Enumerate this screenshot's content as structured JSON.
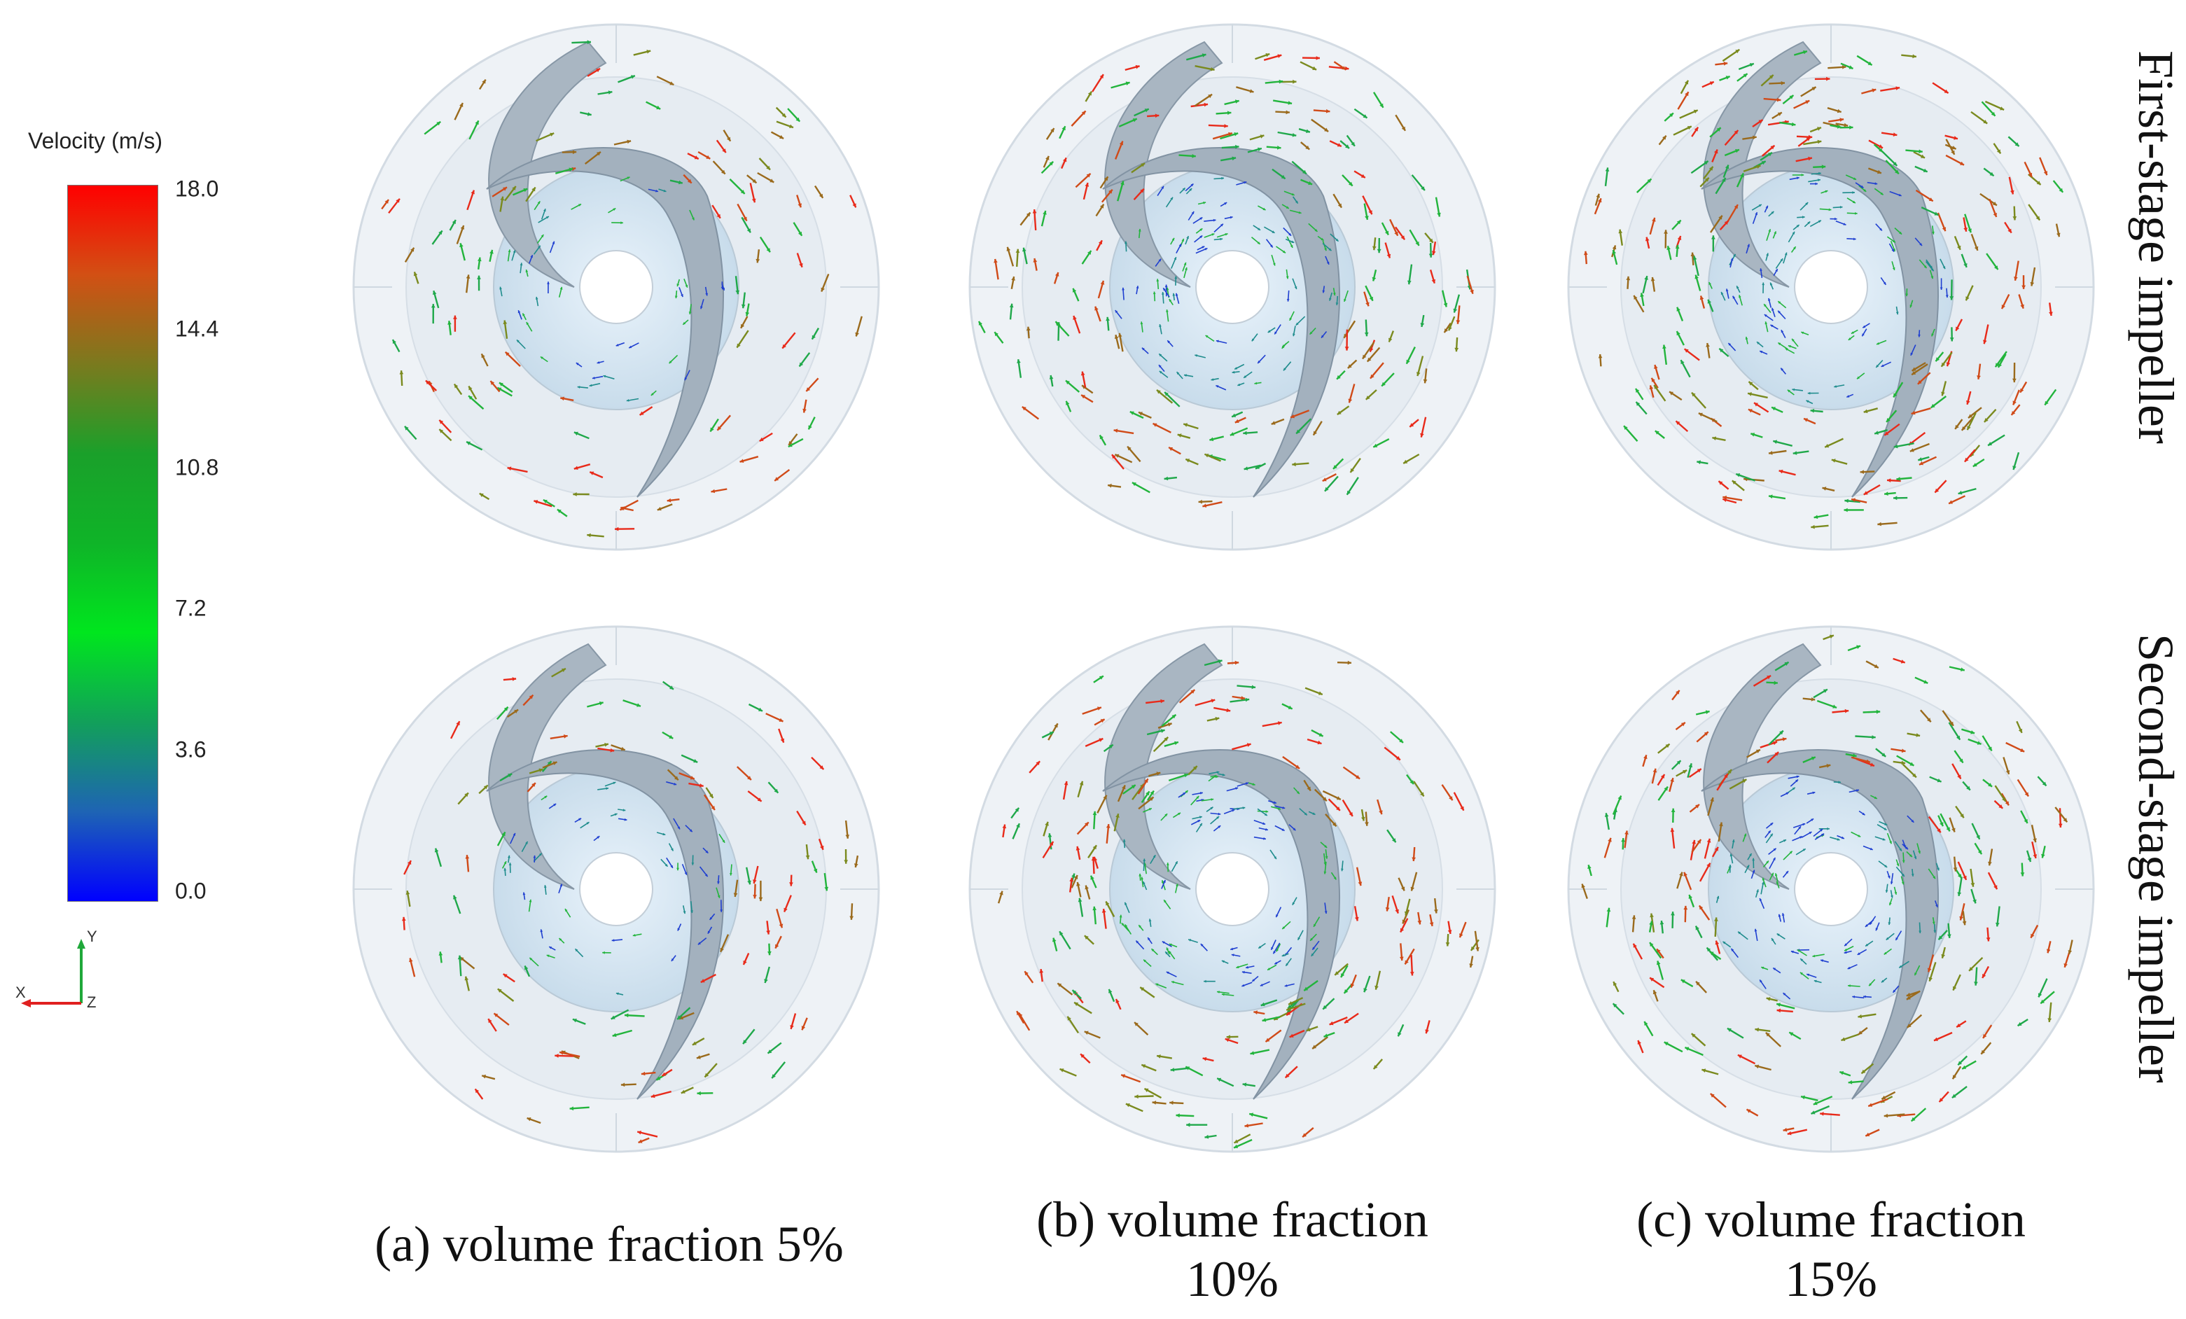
{
  "legend": {
    "title": "Velocity (m/s)",
    "ticks": [
      "18.0",
      "14.4",
      "10.8",
      "7.2",
      "3.6",
      "0.0"
    ],
    "min": 0.0,
    "max": 18.0,
    "colormap": [
      "#0000ff",
      "#1e64b4",
      "#12a05a",
      "#00e61e",
      "#0fb428",
      "#1aa02a",
      "#7a7a1e",
      "#d25014",
      "#ff0000"
    ]
  },
  "axes": {
    "y": "Y",
    "x": "X",
    "z": "Z"
  },
  "row_labels": {
    "first": "First-stage impeller",
    "second": "Second-stage impeller"
  },
  "captions": [
    {
      "line1": "(a)  volume fraction 5%",
      "line2": ""
    },
    {
      "line1": "(b)  volume fraction",
      "line2": "10%"
    },
    {
      "line1": "(c)  volume fraction",
      "line2": "15%"
    }
  ],
  "vector_colors": [
    "#1f3fd0",
    "#1e8c8c",
    "#22b43c",
    "#1fa84a",
    "#7a8a1e",
    "#9a6a1c",
    "#d04a18",
    "#e82a1a"
  ]
}
